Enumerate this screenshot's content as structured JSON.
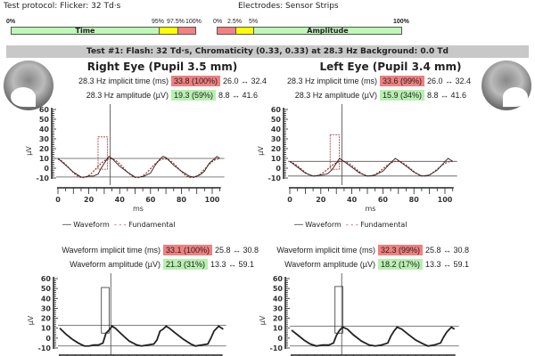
{
  "header": {
    "protocol": "Test protocol: Flicker: 32 Td·s",
    "electrodes": "Electrodes: Sensor Strips"
  },
  "time_scale": {
    "labels": [
      "0%",
      "95%",
      "97.5%",
      "100%"
    ],
    "name": "Time",
    "colors": [
      "#bff7b8",
      "#ffff00",
      "#f48080"
    ]
  },
  "amp_scale": {
    "labels": [
      "0%",
      "2.5%",
      "5%",
      "100%"
    ],
    "name": "Amplitude"
  },
  "test_title": "Test #1:   Flash: 32 Td·s, Chromaticity (0.33, 0.33) at 28.3 Hz   Background: 0.0 Td",
  "right": {
    "title": "Right Eye (Pupil 3.5 mm)",
    "top": {
      "r1": {
        "label": "28.3 Hz implicit time (ms)",
        "value": "33.8 (100%)",
        "range": "26.0 ↔ 32.4"
      },
      "r2": {
        "label": "28.3 Hz amplitude (µV)",
        "value": "19.3 (59%)",
        "range": "8.8 ↔ 41.6"
      }
    },
    "bottom": {
      "r1": {
        "label": "Waveform implicit time (ms)",
        "value": "33.1 (100%)",
        "range": "25.8 ↔ 30.8"
      },
      "r2": {
        "label": "Waveform amplitude (µV)",
        "value": "21.3 (31%)",
        "range": "13.3 ↔ 59.1"
      }
    }
  },
  "left": {
    "title": "Left Eye (Pupil 3.4 mm)",
    "top": {
      "r1": {
        "label": "28.3 Hz implicit time (ms)",
        "value": "33.6 (99%)",
        "range": "26.0 ↔ 32.4"
      },
      "r2": {
        "label": "28.3 Hz amplitude (µV)",
        "value": "15.9 (34%)",
        "range": "8.8 ↔ 41.6"
      }
    },
    "bottom": {
      "r1": {
        "label": "Waveform implicit time (ms)",
        "value": "32.3 (99%)",
        "range": "25.8 ↔ 30.8"
      },
      "r2": {
        "label": "Waveform amplitude (µV)",
        "value": "18.2 (17%)",
        "range": "13.3 ↔ 59.1"
      }
    }
  },
  "legend": {
    "waveform": "Waveform",
    "fundamental": "Fundamental"
  },
  "chart_data": [
    {
      "type": "line",
      "eye": "right",
      "xlabel": "ms",
      "ylabel": "µV",
      "xlim": [
        0,
        105
      ],
      "ylim": [
        -10,
        60
      ],
      "xticks": [
        0,
        20,
        40,
        60,
        80,
        100
      ],
      "yticks": [
        -10,
        0,
        10,
        20,
        30,
        40,
        50,
        60
      ],
      "marker_ms": 33.8,
      "hlines": [
        10,
        -9
      ],
      "box": {
        "x": [
          26,
          32
        ],
        "y": [
          -1,
          32
        ],
        "color": "#b03030",
        "dashed": true
      },
      "waveform": [
        [
          0,
          10
        ],
        [
          5,
          3
        ],
        [
          10,
          -4
        ],
        [
          15,
          -9
        ],
        [
          17,
          -9
        ],
        [
          20,
          -8
        ],
        [
          23,
          -8
        ],
        [
          26,
          -6
        ],
        [
          28,
          0
        ],
        [
          30,
          5
        ],
        [
          33,
          12
        ],
        [
          35,
          10
        ],
        [
          40,
          2
        ],
        [
          45,
          -4
        ],
        [
          50,
          -9
        ],
        [
          53,
          -9
        ],
        [
          56,
          -8
        ],
        [
          60,
          -5
        ],
        [
          63,
          3
        ],
        [
          66,
          9
        ],
        [
          68,
          12
        ],
        [
          70,
          11
        ],
        [
          75,
          3
        ],
        [
          80,
          -3
        ],
        [
          85,
          -8
        ],
        [
          88,
          -9
        ],
        [
          92,
          -7
        ],
        [
          95,
          -3
        ],
        [
          98,
          5
        ],
        [
          101,
          9
        ],
        [
          103,
          12
        ],
        [
          105,
          10
        ]
      ],
      "fundamental": {
        "amplitude": 9.6,
        "offset": 0,
        "frequency_hz": 28.3,
        "peak_ms": 33.8
      }
    },
    {
      "type": "line",
      "eye": "left",
      "xlabel": "ms",
      "ylabel": "µV",
      "xlim": [
        0,
        105
      ],
      "ylim": [
        -10,
        60
      ],
      "xticks": [
        0,
        20,
        40,
        60,
        80,
        100
      ],
      "yticks": [
        -10,
        0,
        10,
        20,
        30,
        40,
        50,
        60
      ],
      "marker_ms": 33.6,
      "hlines": [
        7,
        -8
      ],
      "box": {
        "x": [
          26,
          32
        ],
        "y": [
          -1,
          34
        ],
        "color": "#b03030",
        "dashed": true
      },
      "waveform": [
        [
          0,
          7
        ],
        [
          5,
          1
        ],
        [
          10,
          -5
        ],
        [
          15,
          -8
        ],
        [
          20,
          -7
        ],
        [
          24,
          -6
        ],
        [
          27,
          -2
        ],
        [
          30,
          5
        ],
        [
          32,
          10
        ],
        [
          34,
          8
        ],
        [
          40,
          1
        ],
        [
          45,
          -5
        ],
        [
          50,
          -8
        ],
        [
          55,
          -7
        ],
        [
          60,
          -3
        ],
        [
          63,
          2
        ],
        [
          66,
          7
        ],
        [
          68,
          10
        ],
        [
          70,
          8
        ],
        [
          75,
          2
        ],
        [
          80,
          -4
        ],
        [
          85,
          -8
        ],
        [
          90,
          -7
        ],
        [
          95,
          -2
        ],
        [
          99,
          5
        ],
        [
          102,
          10
        ],
        [
          105,
          7
        ]
      ],
      "fundamental": {
        "amplitude": 7.5,
        "offset": -0.5,
        "frequency_hz": 28.3,
        "peak_ms": 33.6
      }
    },
    {
      "type": "line",
      "eye": "right",
      "ylabel": "µV",
      "xlim": [
        0,
        105
      ],
      "ylim": [
        -10,
        60
      ],
      "yticks": [
        -10,
        0,
        10,
        20,
        30,
        40,
        50,
        60
      ],
      "marker_ms": 33.1,
      "hlines": [
        13,
        -8
      ],
      "box": {
        "x": [
          27,
          32
        ],
        "y": [
          5,
          51
        ],
        "color": "#333",
        "dashed": false
      },
      "waveform": [
        [
          0,
          10
        ],
        [
          4,
          4
        ],
        [
          8,
          -1
        ],
        [
          12,
          -5
        ],
        [
          16,
          -8
        ],
        [
          19,
          -8
        ],
        [
          22,
          -7
        ],
        [
          25,
          -7
        ],
        [
          28,
          -5
        ],
        [
          30,
          5
        ],
        [
          32,
          8
        ],
        [
          34,
          12
        ],
        [
          36,
          10
        ],
        [
          40,
          4
        ],
        [
          45,
          -3
        ],
        [
          50,
          -7
        ],
        [
          53,
          -8
        ],
        [
          57,
          -7
        ],
        [
          61,
          -6
        ],
        [
          63,
          -2
        ],
        [
          65,
          7
        ],
        [
          67,
          9
        ],
        [
          69,
          12
        ],
        [
          71,
          10
        ],
        [
          75,
          5
        ],
        [
          80,
          -1
        ],
        [
          85,
          -6
        ],
        [
          88,
          -8
        ],
        [
          92,
          -7
        ],
        [
          96,
          -6
        ],
        [
          98,
          0
        ],
        [
          100,
          7
        ],
        [
          103,
          12
        ],
        [
          106,
          9
        ]
      ]
    },
    {
      "type": "line",
      "eye": "left",
      "ylabel": "µV",
      "xlim": [
        0,
        105
      ],
      "ylim": [
        -10,
        60
      ],
      "yticks": [
        -10,
        0,
        10,
        20,
        30,
        40,
        50,
        60
      ],
      "marker_ms": 32.3,
      "hlines": [
        12,
        -8
      ],
      "box": {
        "x": [
          28,
          33
        ],
        "y": [
          5,
          52
        ],
        "color": "#333",
        "dashed": false
      },
      "waveform": [
        [
          0,
          8
        ],
        [
          4,
          3
        ],
        [
          8,
          -2
        ],
        [
          12,
          -6
        ],
        [
          16,
          -8
        ],
        [
          20,
          -7
        ],
        [
          24,
          -7
        ],
        [
          27,
          -5
        ],
        [
          29,
          3
        ],
        [
          31,
          8
        ],
        [
          33,
          11
        ],
        [
          36,
          9
        ],
        [
          40,
          3
        ],
        [
          45,
          -3
        ],
        [
          50,
          -7
        ],
        [
          54,
          -8
        ],
        [
          58,
          -7
        ],
        [
          62,
          -5
        ],
        [
          64,
          2
        ],
        [
          66,
          7
        ],
        [
          68,
          11
        ],
        [
          71,
          9
        ],
        [
          75,
          4
        ],
        [
          80,
          -2
        ],
        [
          85,
          -6
        ],
        [
          88,
          -8
        ],
        [
          92,
          -7
        ],
        [
          96,
          -5
        ],
        [
          98,
          1
        ],
        [
          100,
          6
        ],
        [
          103,
          11
        ],
        [
          105,
          9
        ]
      ]
    }
  ]
}
